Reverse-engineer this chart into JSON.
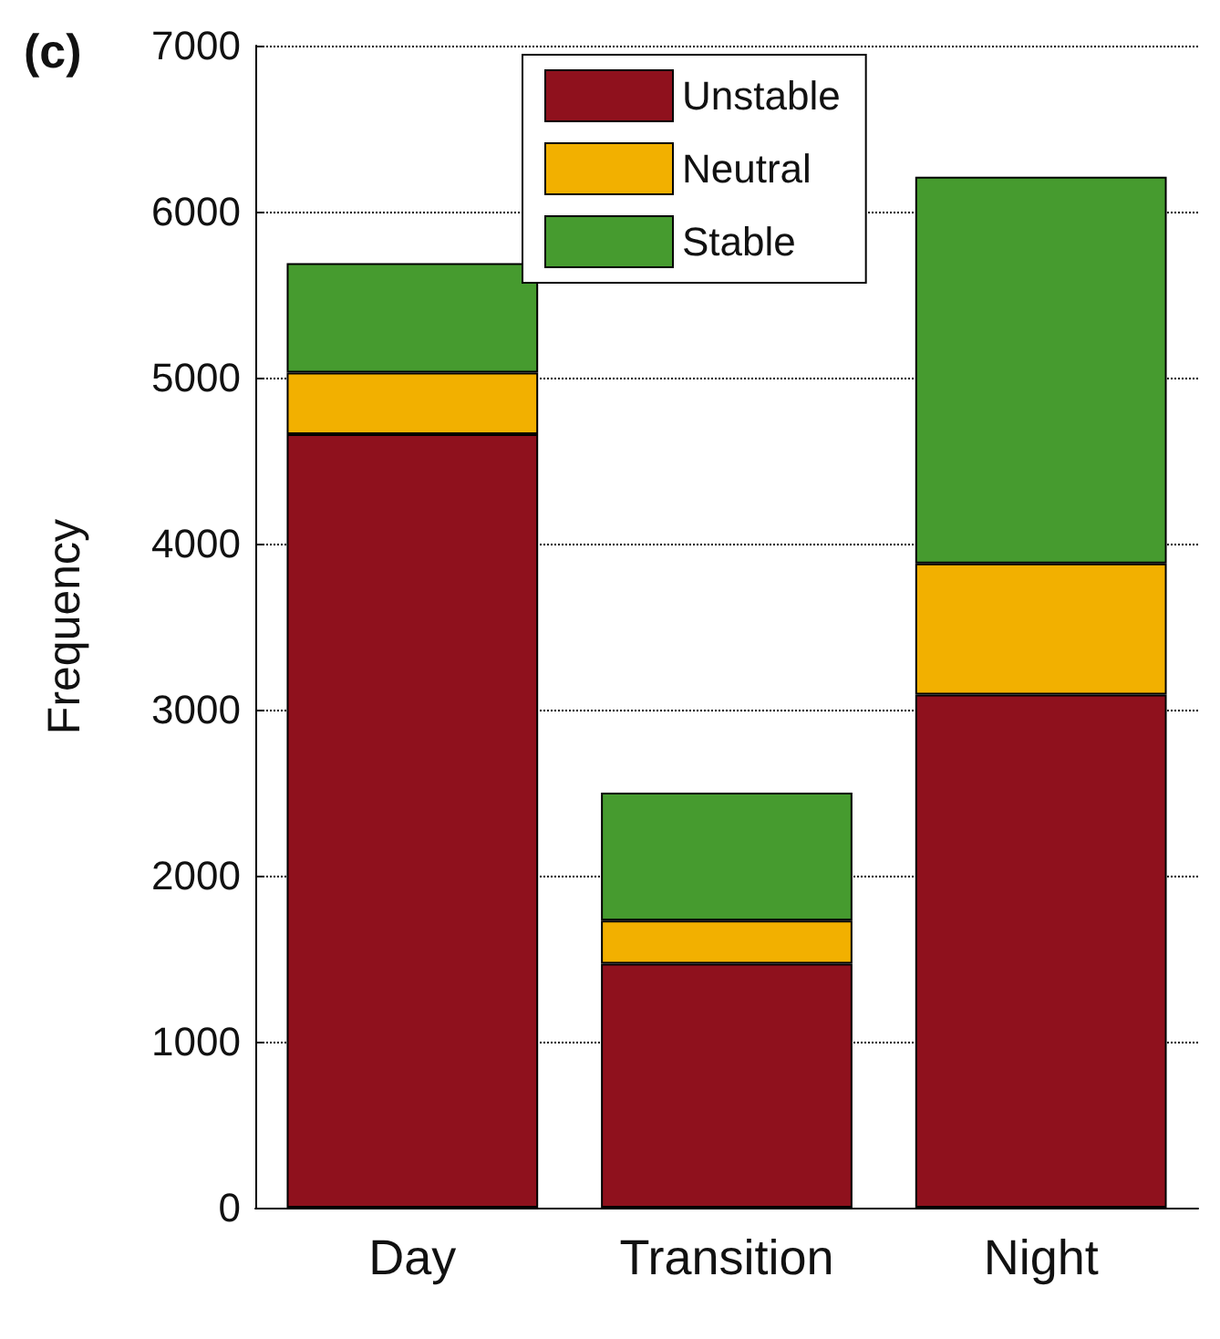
{
  "chart_data": {
    "type": "bar",
    "title": "(c)",
    "ylabel": "Frequency",
    "categories": [
      "Day",
      "Transition",
      "Night"
    ],
    "stacked": true,
    "series": [
      {
        "name": "Unstable",
        "color": "#8f111d",
        "values": [
          4660,
          1470,
          3090
        ]
      },
      {
        "name": "Neutral",
        "color": "#f2b000",
        "values": [
          370,
          260,
          790
        ]
      },
      {
        "name": "Stable",
        "color": "#469b2f",
        "values": [
          660,
          770,
          2330
        ]
      }
    ],
    "ylim": [
      0,
      7000
    ],
    "yticks": [
      0,
      1000,
      2000,
      3000,
      4000,
      5000,
      6000,
      7000
    ],
    "grid": "y",
    "legend": "top"
  }
}
